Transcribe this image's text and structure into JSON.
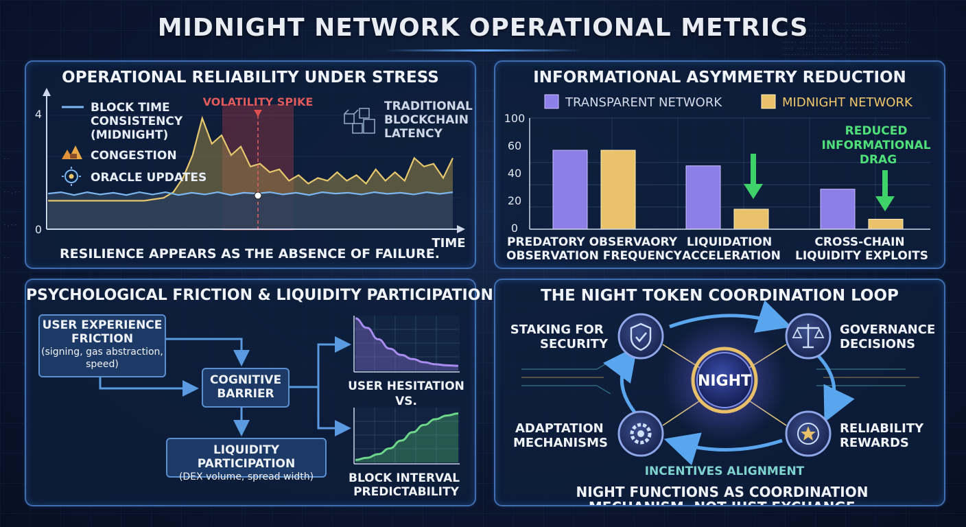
{
  "page_title": "MIDNIGHT NETWORK OPERATIONAL METRICS",
  "colors": {
    "accent": "#5fa8ff",
    "midnight_line": "#7cb7f0",
    "traditional_line": "#e8c86c",
    "transparent_bar": "#8e7fe8",
    "midnight_bar": "#e9c26a",
    "down_arrow": "#3fd16a",
    "volatility": "#e05050",
    "hesitation_curve": "#a98cf0",
    "predictability_curve": "#6ed68a",
    "alignment_text": "#7fd4d0"
  },
  "reliability": {
    "title": "OPERATIONAL RELIABILITY UNDER STRESS",
    "legend_block_time": "BLOCK TIME CONSISTENCY (MIDNIGHT)",
    "legend_block_time_lines": [
      "BLOCK TIME",
      "CONSISTENCY",
      "(MIDNIGHT)"
    ],
    "legend_congestion": "CONGESTION",
    "legend_oracle": "ORACLE UPDATES",
    "legend_traditional_lines": [
      "TRADITIONAL",
      "BLOCKCHAIN",
      "LATENCY"
    ],
    "volatility_label": "VOLATILITY SPIKE",
    "y_tick_top": "4",
    "y_tick_zero": "0",
    "x_label": "TIME",
    "caption": "RESILIENCE APPEARS AS THE ABSENCE OF FAILURE.",
    "icons": [
      "line-legend-icon",
      "congestion-icon",
      "oracle-icon",
      "blockchain-cubes-icon"
    ]
  },
  "chart_data": [
    {
      "type": "line",
      "title": "OPERATIONAL RELIABILITY UNDER STRESS",
      "xlabel": "TIME",
      "ylabel": "",
      "ylim": [
        0,
        4.2
      ],
      "yticks": [
        "0",
        "4"
      ],
      "series": [
        {
          "name": "BLOCK TIME CONSISTENCY (MIDNIGHT)",
          "values": [
            1.25,
            1.3,
            1.2,
            1.3,
            1.22,
            1.28,
            1.2,
            1.3,
            1.22,
            1.3,
            1.2,
            1.28,
            1.22,
            1.3,
            1.2,
            1.28,
            1.25,
            1.3,
            1.22,
            1.28,
            1.2,
            1.3,
            1.25,
            1.28,
            1.22,
            1.3,
            1.24,
            1.28,
            1.22,
            1.3,
            1.24,
            1.3
          ]
        },
        {
          "name": "TRADITIONAL BLOCKCHAIN LATENCY",
          "values": [
            1.0,
            1.0,
            1.0,
            1.0,
            1.0,
            1.0,
            1.0,
            1.0,
            1.0,
            1.0,
            1.0,
            1.05,
            1.1,
            1.3,
            1.8,
            2.6,
            3.9,
            3.0,
            3.3,
            2.6,
            2.9,
            2.2,
            2.3,
            2.0,
            2.1,
            1.7,
            1.9,
            1.6,
            1.8,
            1.7,
            2.0,
            1.7,
            1.9,
            1.6,
            2.1,
            1.7,
            2.0,
            1.7,
            2.5,
            2.2,
            2.3,
            1.8,
            2.5
          ]
        }
      ],
      "annotations": [
        "VOLATILITY SPIKE"
      ]
    },
    {
      "type": "bar",
      "title": "INFORMATIONAL ASYMMETRY REDUCTION",
      "categories": [
        "PREDATORY OBSERVAORY OBSERVATION FREQUENCY",
        "LIQUIDATION ACCELERATION",
        "CROSS-CHAIN LIQUIDITY EXPLOITS"
      ],
      "ylim": [
        0,
        100
      ],
      "yticks": [
        0,
        20,
        40,
        60,
        100
      ],
      "series": [
        {
          "name": "TRANSPARENT NETWORK",
          "values": [
            71,
            57,
            36
          ]
        },
        {
          "name": "MIDNIGHT NETWORK",
          "values": [
            71,
            18,
            9
          ]
        }
      ],
      "annotations": [
        "REDUCED INFORMATIONAL DRAG"
      ]
    },
    {
      "type": "line",
      "title": "USER HESITATION",
      "series": [
        {
          "name": "USER HESITATION",
          "values": [
            1.0,
            0.82,
            0.6,
            0.42,
            0.3,
            0.22,
            0.16,
            0.12,
            0.1,
            0.09
          ]
        }
      ]
    },
    {
      "type": "line",
      "title": "BLOCK INTERVAL PREDICTABILITY",
      "series": [
        {
          "name": "BLOCK INTERVAL PREDICTABILITY",
          "values": [
            0.05,
            0.09,
            0.16,
            0.27,
            0.42,
            0.58,
            0.72,
            0.83,
            0.9,
            0.94
          ]
        }
      ]
    }
  ],
  "asymmetry": {
    "title": "INFORMATIONAL ASYMMETRY REDUCTION",
    "legend_transparent": "TRANSPARENT NETWORK",
    "legend_midnight": "MIDNIGHT NETWORK",
    "y_ticks": [
      "100",
      "60",
      "40",
      "20",
      "0"
    ],
    "category_lines": [
      [
        "PREDATORY OBSERVAORY",
        "OBSERVATION FREQUENCY"
      ],
      [
        "LIQUIDATION",
        "ACCELERATION"
      ],
      [
        "CROSS-CHAIN",
        "LIQUIDITY EXPLOITS"
      ]
    ],
    "drag_label_lines": [
      "REDUCED",
      "INFORMATIONAL",
      "DRAG"
    ]
  },
  "friction": {
    "title": "PSYCHOLOGICAL FRICTION & LIQUIDITY PARTICIPATION",
    "ux_title_lines": [
      "USER EXPERIENCE",
      "FRICTION"
    ],
    "ux_sub_lines": [
      "(signing, gas abstraction,",
      "speed)"
    ],
    "cognitive_lines": [
      "COGNITIVE",
      "BARRIER"
    ],
    "liquidity_title": "LIQUIDITY PARTICIPATION",
    "liquidity_sub": "(DEX volume, spread width)",
    "hesitation_label": "USER HESITATION",
    "vs_label": "VS.",
    "predictability_lines": [
      "BLOCK INTERVAL",
      "PREDICTABILITY"
    ]
  },
  "loop": {
    "title": "THE NIGHT TOKEN COORDINATION LOOP",
    "center_label": "NIGHT",
    "staking_lines": [
      "STAKING FOR",
      "SECURITY"
    ],
    "governance_lines": [
      "GOVERNANCE",
      "DECISIONS"
    ],
    "adaptation_lines": [
      "ADAPTATION",
      "MECHANISMS"
    ],
    "reliability_lines": [
      "RELIABILITY",
      "REWARDS"
    ],
    "alignment": "INCENTIVES ALIGNMENT",
    "caption_lines": [
      "NIGHT FUNCTIONS AS COORDINATION",
      "MECHANISM, NOT JUST EXCHANGE."
    ],
    "icons": [
      "shield-check-icon",
      "scales-icon",
      "gear-icon",
      "star-badge-icon"
    ]
  }
}
